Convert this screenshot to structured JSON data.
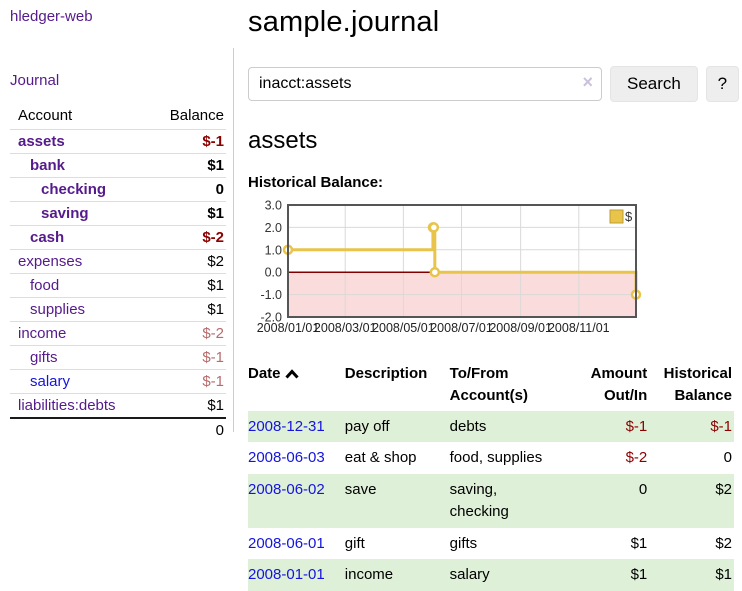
{
  "app": {
    "brand": "hledger-web"
  },
  "colors": {
    "link_purple": "#551a8b",
    "link_blue": "#1414dd",
    "negative_strong": "#8b0000",
    "negative_soft": "#b76b6b",
    "row_highlight_green": "#dff0d8",
    "chart_line_yellow": "#e8c44a",
    "chart_negative_fill": "#fbdcdc",
    "chart_zero_line": "#800000",
    "chart_border": "#555555",
    "chart_grid": "#d9d9d9"
  },
  "sidebar": {
    "journal_link": "Journal",
    "accounts_table": {
      "headers": {
        "account": "Account",
        "balance": "Balance"
      },
      "rows": [
        {
          "name": "assets",
          "indent": 0,
          "bold": true,
          "balance": "$-1",
          "balance_style": "neg-strong",
          "link_style": "purple"
        },
        {
          "name": "bank",
          "indent": 1,
          "bold": true,
          "balance": "$1",
          "balance_style": "pos",
          "link_style": "purple"
        },
        {
          "name": "checking",
          "indent": 2,
          "bold": true,
          "balance": "0",
          "balance_style": "pos",
          "link_style": "purple"
        },
        {
          "name": "saving",
          "indent": 2,
          "bold": true,
          "balance": "$1",
          "balance_style": "pos",
          "link_style": "purple"
        },
        {
          "name": "cash",
          "indent": 1,
          "bold": true,
          "balance": "$-2",
          "balance_style": "neg-strong",
          "link_style": "purple"
        },
        {
          "name": "expenses",
          "indent": 0,
          "bold": false,
          "balance": "$2",
          "balance_style": "pos",
          "link_style": "purple"
        },
        {
          "name": "food",
          "indent": 1,
          "bold": false,
          "balance": "$1",
          "balance_style": "pos",
          "link_style": "purple"
        },
        {
          "name": "supplies",
          "indent": 1,
          "bold": false,
          "balance": "$1",
          "balance_style": "pos",
          "link_style": "purple"
        },
        {
          "name": "income",
          "indent": 0,
          "bold": false,
          "balance": "$-2",
          "balance_style": "neg-soft",
          "link_style": "purple"
        },
        {
          "name": "gifts",
          "indent": 1,
          "bold": false,
          "balance": "$-1",
          "balance_style": "neg-soft",
          "link_style": "purple"
        },
        {
          "name": "salary",
          "indent": 1,
          "bold": false,
          "balance": "$-1",
          "balance_style": "neg-soft",
          "link_style": "blue"
        },
        {
          "name": "liabilities:debts",
          "indent": 0,
          "bold": false,
          "balance": "$1",
          "balance_style": "pos",
          "link_style": "purple"
        }
      ],
      "total": "0"
    }
  },
  "main": {
    "title": "sample.journal",
    "search": {
      "value": "inacct:assets",
      "clear_icon": "×",
      "search_button": "Search",
      "help_button": "?"
    },
    "account_heading": "assets",
    "chart_label": "Historical Balance:"
  },
  "chart_data": {
    "type": "line",
    "title": "Historical Balance",
    "step": true,
    "series": [
      {
        "name": "$",
        "points": [
          [
            "2008-01-01",
            1
          ],
          [
            "2008-06-01",
            2
          ],
          [
            "2008-06-02",
            2
          ],
          [
            "2008-06-03",
            0
          ],
          [
            "2008-12-31",
            -1
          ]
        ]
      }
    ],
    "x_range": [
      "2008-01-01",
      "2008-12-31"
    ],
    "x_tick_dates": [
      "2008-01-01",
      "2008-03-01",
      "2008-05-01",
      "2008-07-01",
      "2008-09-01",
      "2008-11-01"
    ],
    "x_tick_labels": [
      "2008/01/01",
      "2008/03/01",
      "2008/05/01",
      "2008/07/01",
      "2008/09/01",
      "2008/11/01"
    ],
    "y_ticks": [
      3,
      2,
      1,
      0,
      -1,
      -2
    ],
    "ylim": [
      -2,
      3
    ],
    "legend": "$",
    "grid": true,
    "legend_position": "top-right"
  },
  "register": {
    "headers": {
      "date": "Date",
      "description": "Description",
      "accounts": "To/From Account(s)",
      "amount": "Amount Out/In",
      "balance": "Historical Balance"
    },
    "rows": [
      {
        "date": "2008-12-31",
        "description": "pay off",
        "accounts": "debts",
        "amount": "$-1",
        "amount_neg": true,
        "balance": "$-1",
        "balance_neg": true,
        "highlight": true
      },
      {
        "date": "2008-06-03",
        "description": "eat & shop",
        "accounts": "food, supplies",
        "amount": "$-2",
        "amount_neg": true,
        "balance": "0",
        "balance_neg": false,
        "highlight": false
      },
      {
        "date": "2008-06-02",
        "description": "save",
        "accounts": [
          "saving,",
          "checking"
        ],
        "amount": "0",
        "amount_neg": false,
        "balance": "$2",
        "balance_neg": false,
        "highlight": true
      },
      {
        "date": "2008-06-01",
        "description": "gift",
        "accounts": "gifts",
        "amount": "$1",
        "amount_neg": false,
        "balance": "$2",
        "balance_neg": false,
        "highlight": false
      },
      {
        "date": "2008-01-01",
        "description": "income",
        "accounts": "salary",
        "amount": "$1",
        "amount_neg": false,
        "balance": "$1",
        "balance_neg": false,
        "highlight": true
      }
    ]
  }
}
